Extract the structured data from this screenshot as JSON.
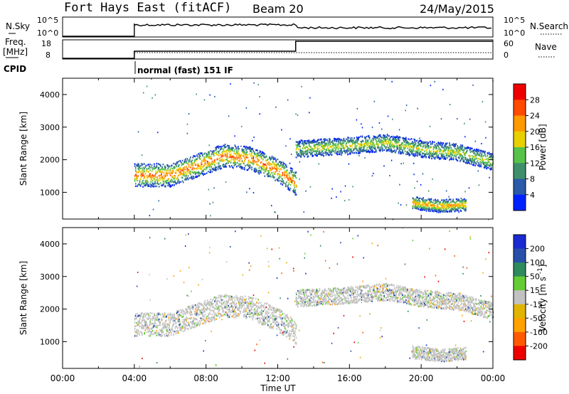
{
  "header": {
    "station": "Fort Hays East (fitACF)",
    "beam": "Beam 20",
    "date": "24/May/2015"
  },
  "top_panel": {
    "left_label": "N.Sky",
    "left_ticks": [
      "10^5",
      "10^0"
    ],
    "right_ticks": [
      "10^5",
      "10^0"
    ],
    "right_label": "N.Search"
  },
  "freq_panel": {
    "left_label_1": "Freq.",
    "left_label_2": "[MHz]",
    "left_ticks": [
      "18",
      "8"
    ],
    "right_ticks": [
      "60",
      "0"
    ],
    "right_label": "Nave"
  },
  "cpid": {
    "label": "CPID",
    "value": "normal (fast) 151 IF"
  },
  "colors": {
    "power": [
      "#0022ff",
      "#2a5aa8",
      "#3f8f6a",
      "#58c24a",
      "#e8d000",
      "#ff9900",
      "#ff4a00",
      "#ee0000"
    ],
    "velocity": [
      "#ee0000",
      "#ff5a00",
      "#ffa200",
      "#e0b400",
      "#c2c2c2",
      "#66cc33",
      "#2f8a5e",
      "#2850a8",
      "#1a2ad0"
    ]
  },
  "chart_data": [
    {
      "type": "heatmap",
      "title": "",
      "ylabel": "Slant Range [km]",
      "xlabel": "",
      "y_ticks": [
        "4000",
        "3000",
        "2000",
        "1000"
      ],
      "ylim": [
        180,
        4500
      ],
      "xlim": [
        0,
        24
      ],
      "x_tick_hours": [
        0,
        2,
        4,
        6,
        8,
        10,
        12,
        14,
        16,
        18,
        20,
        22,
        24
      ],
      "colorbar": {
        "label": "Power [dB]",
        "ticks": [
          "28",
          "24",
          "20",
          "16",
          "12",
          "8",
          "4"
        ],
        "range": [
          0,
          32
        ]
      },
      "bands": [
        {
          "t_start": 4.0,
          "t_end": 13.0,
          "range_km": [
            [
              4.0,
              1550
            ],
            [
              6.0,
              1550
            ],
            [
              7.5,
              1850
            ],
            [
              9.0,
              2150
            ],
            [
              10.5,
              2050
            ],
            [
              12.0,
              1700
            ],
            [
              13.0,
              1300
            ]
          ],
          "width_km": 550,
          "peak_db": 27
        },
        {
          "t_start": 13.0,
          "t_end": 24.0,
          "range_km": [
            [
              13.0,
              2350
            ],
            [
              16.0,
              2450
            ],
            [
              18.0,
              2550
            ],
            [
              20.0,
              2350
            ],
            [
              22.0,
              2250
            ],
            [
              24.0,
              1950
            ]
          ],
          "width_km": 400,
          "peak_db": 18
        },
        {
          "t_start": 19.5,
          "t_end": 22.5,
          "range_km": [
            [
              19.5,
              700
            ],
            [
              21.0,
              600
            ],
            [
              22.5,
              650
            ]
          ],
          "width_km": 300,
          "peak_db": 24
        }
      ]
    },
    {
      "type": "heatmap",
      "title": "",
      "ylabel": "Slant Range [km]",
      "xlabel": "Time UT",
      "y_ticks": [
        "4000",
        "3000",
        "2000",
        "1000"
      ],
      "ylim": [
        180,
        4500
      ],
      "xlim": [
        0,
        24
      ],
      "x_ticks": [
        "00:00",
        "04:00",
        "08:00",
        "12:00",
        "16:00",
        "20:00",
        "00:00"
      ],
      "x_tick_hours": [
        0,
        4,
        8,
        12,
        16,
        20,
        24
      ],
      "colorbar": {
        "label": "Velocity [m s^-1]",
        "ticks": [
          "200",
          "100",
          "50",
          "15",
          "-15",
          "-50",
          "-100",
          "-200"
        ],
        "range": [
          -250,
          250
        ]
      },
      "bands": [
        {
          "t_start": 4.0,
          "t_end": 13.0,
          "range_km": [
            [
              4.0,
              1550
            ],
            [
              6.0,
              1550
            ],
            [
              7.5,
              1850
            ],
            [
              9.0,
              2150
            ],
            [
              10.5,
              2050
            ],
            [
              12.0,
              1700
            ],
            [
              13.0,
              1300
            ]
          ],
          "width_km": 550,
          "velocity": "ground-scatter"
        },
        {
          "t_start": 13.0,
          "t_end": 24.0,
          "range_km": [
            [
              13.0,
              2350
            ],
            [
              16.0,
              2450
            ],
            [
              18.0,
              2550
            ],
            [
              20.0,
              2350
            ],
            [
              22.0,
              2250
            ],
            [
              24.0,
              1950
            ]
          ],
          "width_km": 400,
          "velocity": "ground-scatter"
        },
        {
          "t_start": 19.5,
          "t_end": 22.5,
          "range_km": [
            [
              19.5,
              700
            ],
            [
              21.0,
              600
            ],
            [
              22.5,
              650
            ]
          ],
          "width_km": 300,
          "velocity": "ground-scatter"
        }
      ]
    }
  ]
}
